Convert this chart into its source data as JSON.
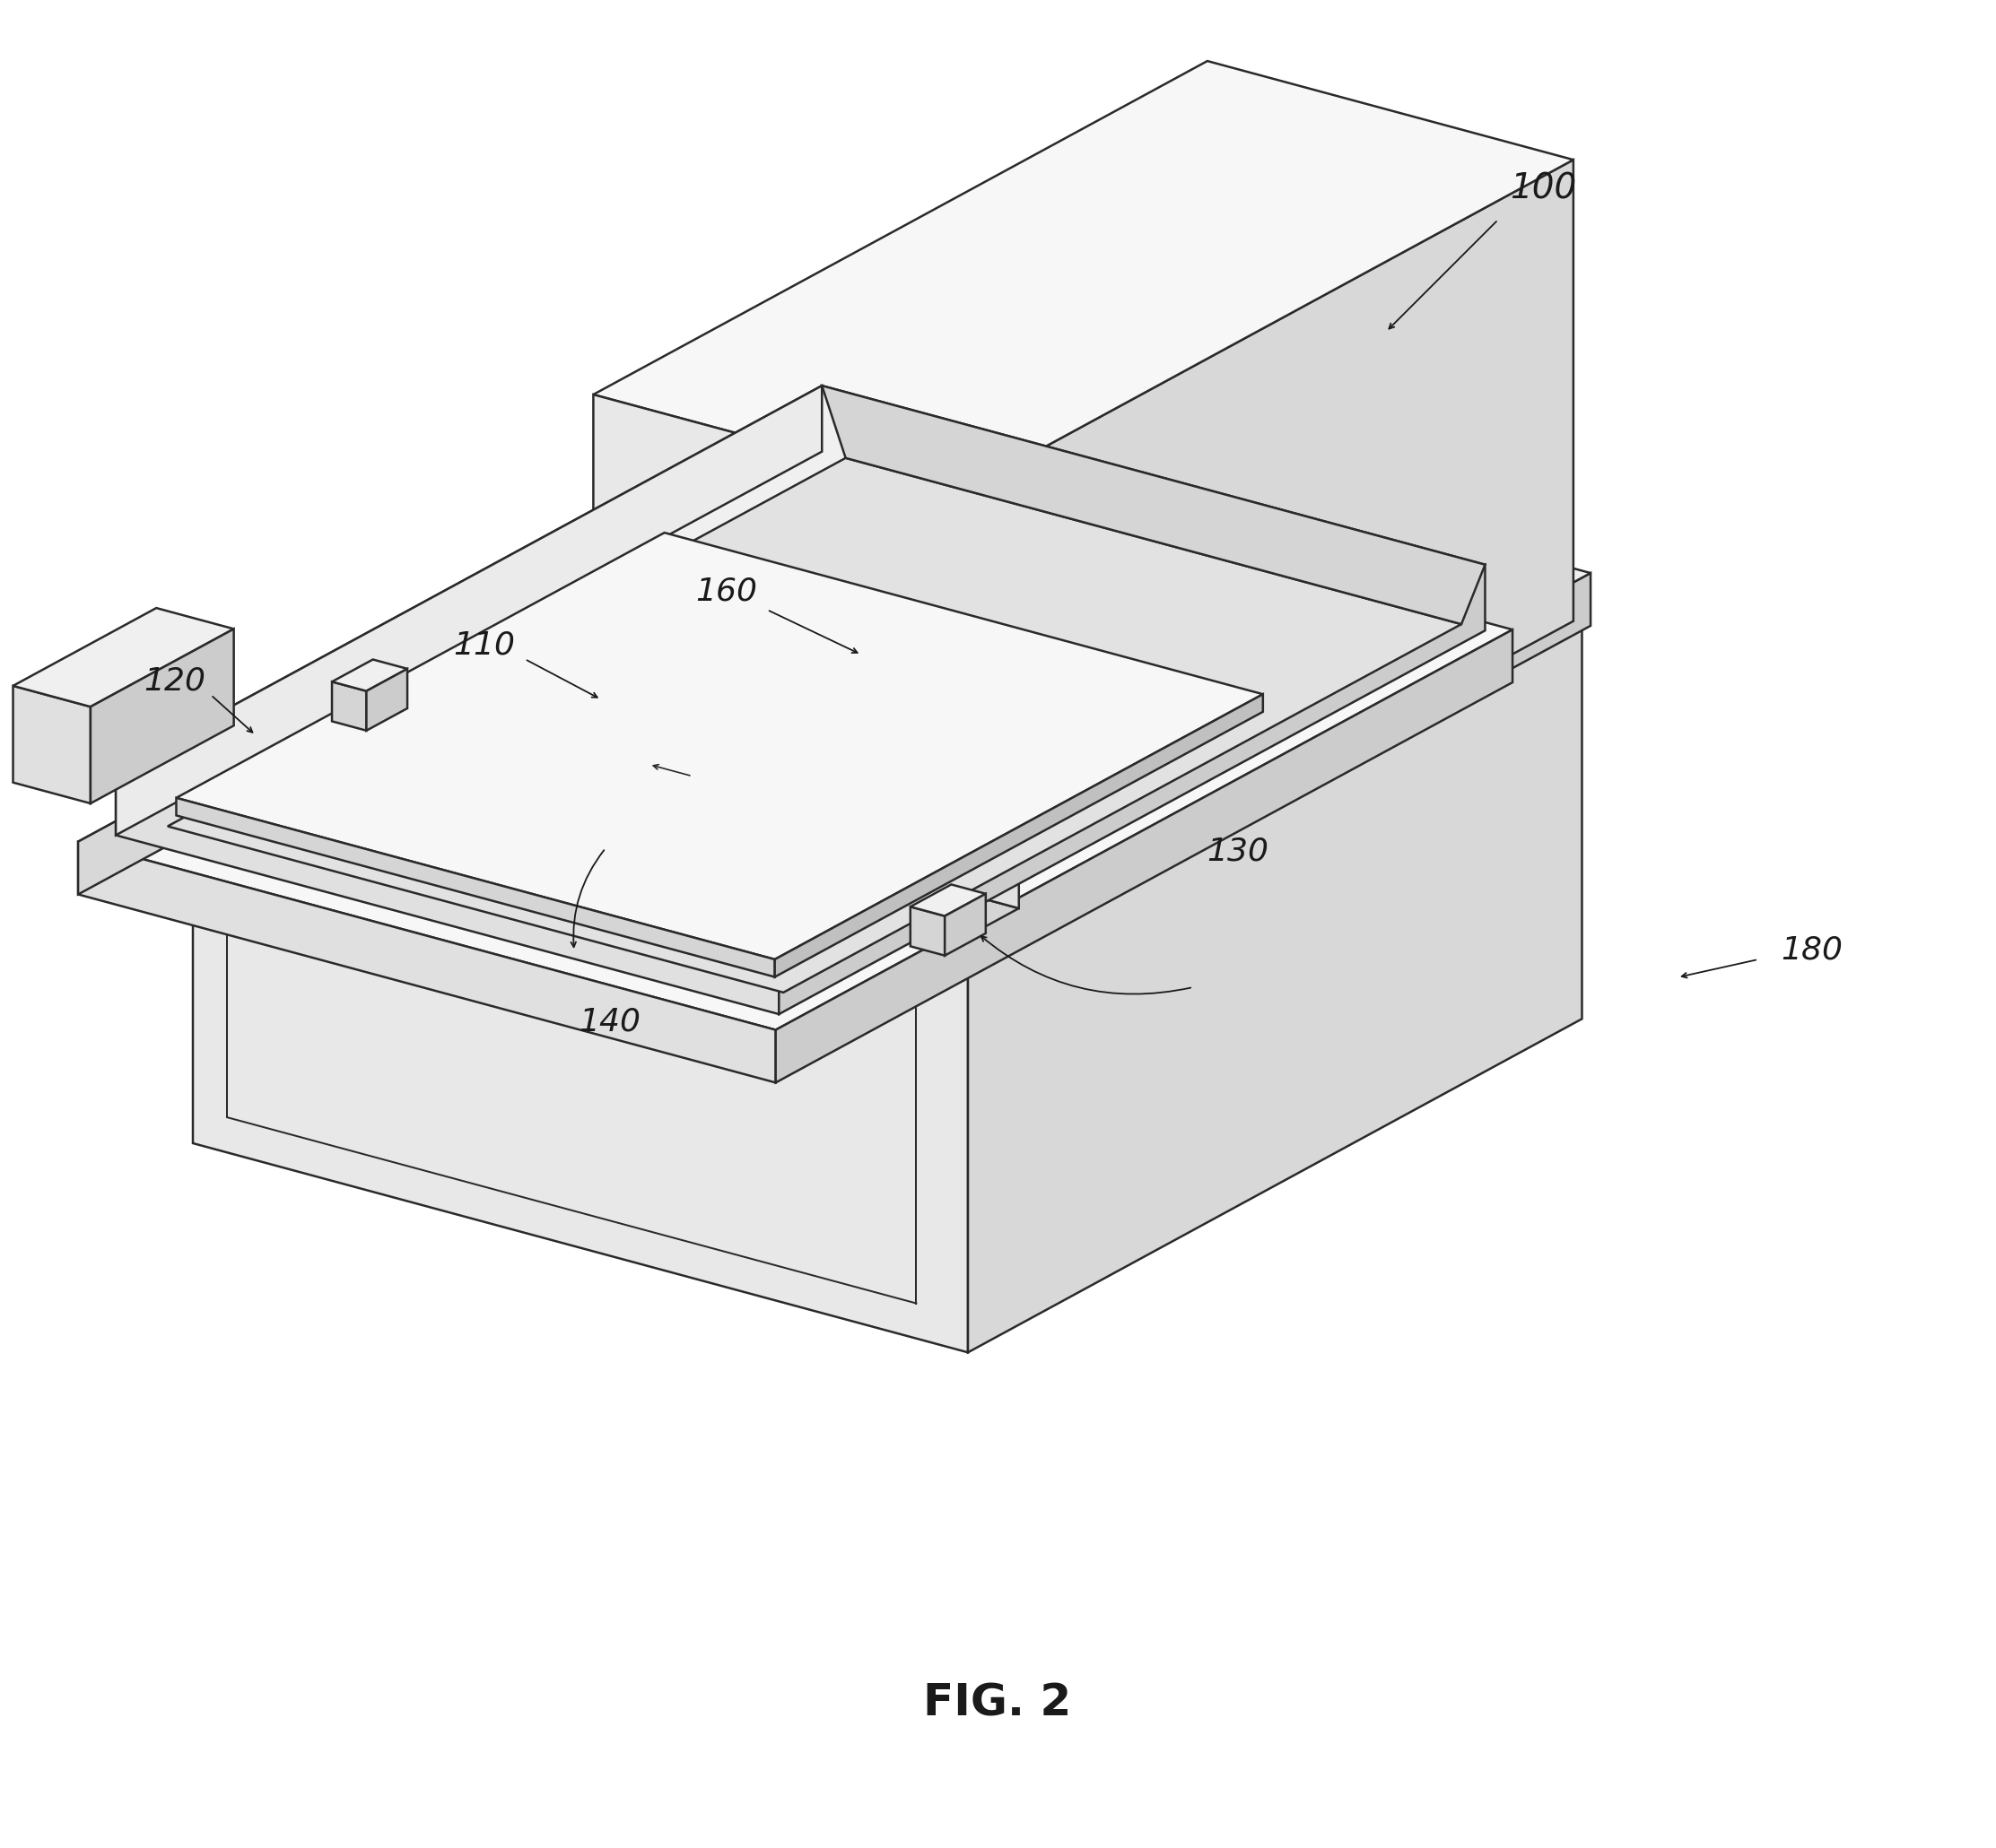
{
  "fig_label": "FIG. 2",
  "fig_label_fontsize": 36,
  "fig_label_fontweight": "bold",
  "background_color": "#ffffff",
  "line_color": "#2a2a2a",
  "lw": 1.8,
  "label_fontsize": 24,
  "colors": {
    "top_light": "#f7f7f7",
    "top_mid": "#f0f0f0",
    "front_light": "#e8e8e8",
    "front_mid": "#e0e0e0",
    "right_light": "#d8d8d8",
    "right_mid": "#cccccc",
    "right_dark": "#c0c0c0",
    "inner_top": "#ebebeb",
    "inner_front": "#d5d5d5",
    "inner_right": "#c8c8c8",
    "slot_fill": "#e2e2e2"
  }
}
